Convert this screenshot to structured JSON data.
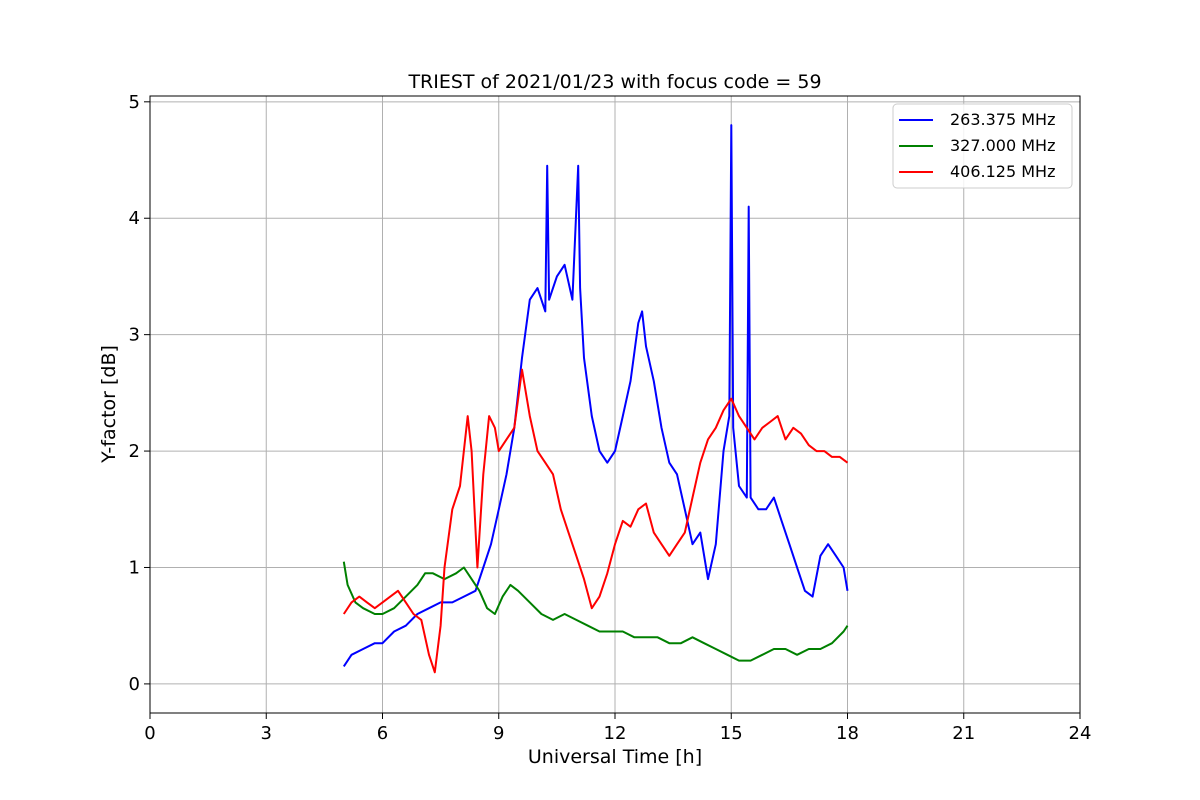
{
  "chart_data": {
    "type": "line",
    "title": "TRIEST of 2021/01/23 with focus code = 59",
    "xlabel": "Universal Time [h]",
    "ylabel": "Y-factor [dB]",
    "xlim": [
      0,
      24
    ],
    "ylim": [
      -0.25,
      5.05
    ],
    "xticks": [
      0,
      3,
      6,
      9,
      12,
      15,
      18,
      21,
      24
    ],
    "yticks": [
      0,
      1,
      2,
      3,
      4,
      5
    ],
    "grid": true,
    "legend_position": "top-right",
    "series": [
      {
        "name": "263.375 MHz",
        "color": "#0000ff",
        "x": [
          5.0,
          5.2,
          5.5,
          5.8,
          6.0,
          6.3,
          6.6,
          6.9,
          7.2,
          7.5,
          7.8,
          8.1,
          8.4,
          8.6,
          8.8,
          9.0,
          9.2,
          9.4,
          9.6,
          9.8,
          10.0,
          10.2,
          10.25,
          10.3,
          10.5,
          10.7,
          10.9,
          11.05,
          11.1,
          11.2,
          11.4,
          11.6,
          11.8,
          12.0,
          12.2,
          12.4,
          12.6,
          12.7,
          12.8,
          13.0,
          13.2,
          13.4,
          13.6,
          13.8,
          14.0,
          14.2,
          14.4,
          14.6,
          14.8,
          14.95,
          15.0,
          15.05,
          15.2,
          15.4,
          15.45,
          15.5,
          15.7,
          15.9,
          16.1,
          16.3,
          16.5,
          16.7,
          16.9,
          17.1,
          17.3,
          17.5,
          17.7,
          17.9,
          18.0
        ],
        "y": [
          0.15,
          0.25,
          0.3,
          0.35,
          0.35,
          0.45,
          0.5,
          0.6,
          0.65,
          0.7,
          0.7,
          0.75,
          0.8,
          1.0,
          1.2,
          1.5,
          1.8,
          2.2,
          2.8,
          3.3,
          3.4,
          3.2,
          4.45,
          3.3,
          3.5,
          3.6,
          3.3,
          4.45,
          3.4,
          2.8,
          2.3,
          2.0,
          1.9,
          2.0,
          2.3,
          2.6,
          3.1,
          3.2,
          2.9,
          2.6,
          2.2,
          1.9,
          1.8,
          1.5,
          1.2,
          1.3,
          0.9,
          1.2,
          2.0,
          2.3,
          4.8,
          2.2,
          1.7,
          1.6,
          4.1,
          1.6,
          1.5,
          1.5,
          1.6,
          1.4,
          1.2,
          1.0,
          0.8,
          0.75,
          1.1,
          1.2,
          1.1,
          1.0,
          0.8
        ]
      },
      {
        "name": "327.000 MHz",
        "color": "#008000",
        "x": [
          5.0,
          5.1,
          5.3,
          5.5,
          5.8,
          6.0,
          6.3,
          6.6,
          6.9,
          7.1,
          7.3,
          7.6,
          7.9,
          8.1,
          8.3,
          8.5,
          8.7,
          8.9,
          9.1,
          9.3,
          9.5,
          9.8,
          10.1,
          10.4,
          10.7,
          11.0,
          11.3,
          11.6,
          11.9,
          12.2,
          12.5,
          12.8,
          13.1,
          13.4,
          13.7,
          14.0,
          14.3,
          14.6,
          14.9,
          15.2,
          15.5,
          15.8,
          16.1,
          16.4,
          16.7,
          17.0,
          17.3,
          17.6,
          17.9,
          18.0
        ],
        "y": [
          1.05,
          0.85,
          0.7,
          0.65,
          0.6,
          0.6,
          0.65,
          0.75,
          0.85,
          0.95,
          0.95,
          0.9,
          0.95,
          1.0,
          0.9,
          0.8,
          0.65,
          0.6,
          0.75,
          0.85,
          0.8,
          0.7,
          0.6,
          0.55,
          0.6,
          0.55,
          0.5,
          0.45,
          0.45,
          0.45,
          0.4,
          0.4,
          0.4,
          0.35,
          0.35,
          0.4,
          0.35,
          0.3,
          0.25,
          0.2,
          0.2,
          0.25,
          0.3,
          0.3,
          0.25,
          0.3,
          0.3,
          0.35,
          0.45,
          0.5
        ]
      },
      {
        "name": "406.125 MHz",
        "color": "#ff0000",
        "x": [
          5.0,
          5.2,
          5.4,
          5.6,
          5.8,
          6.0,
          6.2,
          6.4,
          6.6,
          6.8,
          7.0,
          7.2,
          7.35,
          7.5,
          7.6,
          7.8,
          8.0,
          8.2,
          8.3,
          8.45,
          8.6,
          8.75,
          8.9,
          9.0,
          9.2,
          9.4,
          9.6,
          9.8,
          10.0,
          10.2,
          10.4,
          10.6,
          10.8,
          11.0,
          11.2,
          11.4,
          11.6,
          11.8,
          12.0,
          12.2,
          12.4,
          12.6,
          12.8,
          13.0,
          13.2,
          13.4,
          13.6,
          13.8,
          14.0,
          14.2,
          14.4,
          14.6,
          14.8,
          15.0,
          15.2,
          15.4,
          15.6,
          15.8,
          16.0,
          16.2,
          16.4,
          16.6,
          16.8,
          17.0,
          17.2,
          17.4,
          17.6,
          17.8,
          18.0
        ],
        "y": [
          0.6,
          0.7,
          0.75,
          0.7,
          0.65,
          0.7,
          0.75,
          0.8,
          0.7,
          0.6,
          0.55,
          0.25,
          0.1,
          0.5,
          1.0,
          1.5,
          1.7,
          2.3,
          2.0,
          1.0,
          1.8,
          2.3,
          2.2,
          2.0,
          2.1,
          2.2,
          2.7,
          2.3,
          2.0,
          1.9,
          1.8,
          1.5,
          1.3,
          1.1,
          0.9,
          0.65,
          0.75,
          0.95,
          1.2,
          1.4,
          1.35,
          1.5,
          1.55,
          1.3,
          1.2,
          1.1,
          1.2,
          1.3,
          1.6,
          1.9,
          2.1,
          2.2,
          2.35,
          2.45,
          2.3,
          2.2,
          2.1,
          2.2,
          2.25,
          2.3,
          2.1,
          2.2,
          2.15,
          2.05,
          2.0,
          2.0,
          1.95,
          1.95,
          1.9
        ]
      }
    ]
  }
}
